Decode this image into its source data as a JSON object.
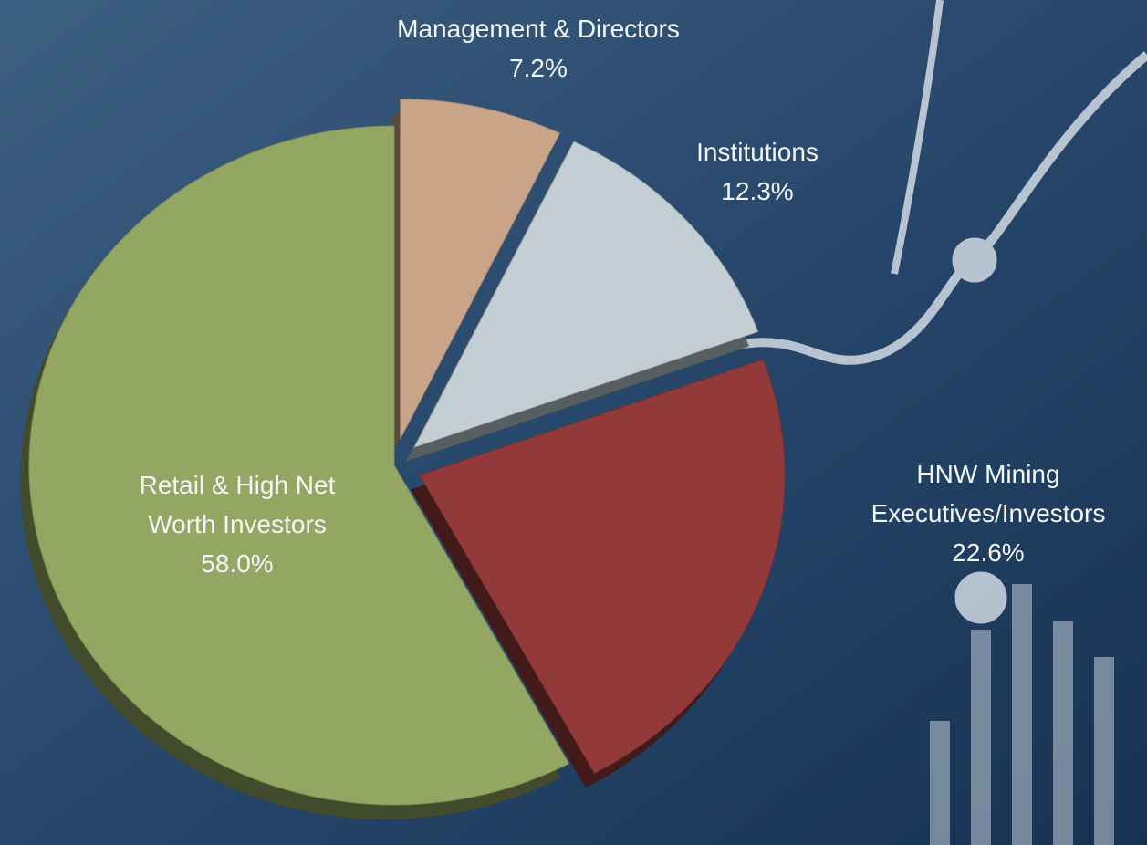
{
  "chart_data": {
    "type": "pie",
    "categories": [
      "Management & Directors",
      "Institutions",
      "HNW Mining Executives/Investors",
      "Retail & High Net Worth Investors"
    ],
    "values": [
      7.2,
      12.3,
      22.6,
      58.0
    ],
    "value_labels": [
      "7.2%",
      "12.3%",
      "22.6%",
      "58.0%"
    ],
    "colors": [
      "#c9a488",
      "#c3cfd4",
      "#923a3a",
      "#93a662"
    ]
  }
}
